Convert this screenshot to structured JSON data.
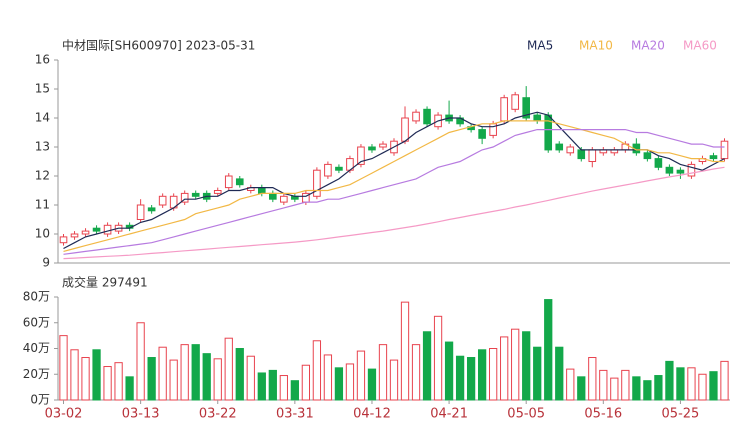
{
  "chart_data": [
    {
      "type": "candlestick",
      "title": "中材国际[SH600970] 2023-05-31",
      "up_color": "#e8434e",
      "down_color": "#13a84a",
      "open": [
        9.7,
        9.9,
        10.0,
        10.2,
        10.0,
        10.1,
        10.3,
        10.5,
        10.9,
        11.0,
        10.9,
        11.1,
        11.4,
        11.4,
        11.4,
        11.6,
        11.9,
        11.5,
        11.6,
        11.4,
        11.1,
        11.3,
        11.1,
        11.3,
        12.0,
        12.3,
        12.2,
        12.4,
        13.0,
        13.0,
        12.8,
        13.2,
        13.9,
        14.3,
        13.7,
        14.1,
        14.0,
        13.7,
        13.6,
        13.4,
        13.9,
        14.3,
        14.7,
        14.1,
        14.1,
        13.1,
        12.8,
        12.9,
        12.5,
        12.8,
        12.8,
        12.9,
        13.1,
        12.8,
        12.6,
        12.3,
        12.2,
        12.0,
        12.5,
        12.7,
        12.6
      ],
      "high": [
        10.0,
        10.1,
        10.2,
        10.3,
        10.4,
        10.4,
        10.4,
        11.2,
        11.0,
        11.4,
        11.4,
        11.5,
        11.5,
        11.5,
        11.6,
        12.1,
        12.0,
        11.7,
        11.7,
        11.5,
        11.4,
        11.4,
        11.5,
        12.3,
        12.5,
        12.4,
        12.7,
        13.1,
        13.1,
        13.2,
        13.3,
        14.4,
        14.3,
        14.4,
        14.2,
        14.6,
        14.1,
        13.8,
        13.7,
        13.9,
        14.8,
        14.9,
        15.1,
        14.2,
        14.2,
        13.2,
        13.1,
        13.0,
        13.0,
        13.0,
        13.0,
        13.2,
        13.3,
        12.9,
        12.7,
        12.4,
        12.3,
        12.5,
        12.7,
        12.8,
        13.3
      ],
      "low": [
        9.6,
        9.8,
        9.9,
        10.0,
        9.9,
        10.0,
        10.1,
        10.4,
        10.7,
        10.9,
        10.8,
        11.0,
        11.2,
        11.1,
        11.3,
        11.5,
        11.6,
        11.4,
        11.3,
        11.1,
        11.0,
        11.1,
        11.0,
        11.2,
        11.9,
        12.1,
        12.1,
        12.3,
        12.8,
        12.9,
        12.7,
        13.1,
        13.8,
        13.7,
        13.6,
        13.8,
        13.7,
        13.5,
        13.1,
        13.3,
        13.8,
        14.2,
        13.9,
        13.8,
        12.8,
        12.8,
        12.7,
        12.5,
        12.3,
        12.7,
        12.7,
        12.8,
        12.7,
        12.5,
        12.2,
        12.0,
        11.9,
        11.9,
        12.4,
        12.5,
        12.5
      ],
      "close": [
        9.9,
        10.0,
        10.1,
        10.1,
        10.3,
        10.3,
        10.2,
        11.0,
        10.8,
        11.3,
        11.3,
        11.4,
        11.3,
        11.2,
        11.5,
        12.0,
        11.7,
        11.6,
        11.4,
        11.2,
        11.3,
        11.2,
        11.4,
        12.2,
        12.4,
        12.2,
        12.6,
        13.0,
        12.9,
        13.1,
        13.2,
        14.0,
        14.2,
        13.8,
        14.1,
        13.9,
        13.8,
        13.6,
        13.3,
        13.8,
        14.7,
        14.8,
        14.0,
        13.9,
        12.9,
        12.9,
        13.0,
        12.6,
        12.9,
        12.9,
        12.9,
        13.1,
        12.8,
        12.6,
        12.3,
        12.1,
        12.1,
        12.4,
        12.6,
        12.6,
        13.2
      ],
      "series": [
        {
          "name": "MA5",
          "color": "#1f2a55",
          "values": [
            9.5,
            9.7,
            9.9,
            10.0,
            10.1,
            10.2,
            10.2,
            10.4,
            10.5,
            10.7,
            10.9,
            11.2,
            11.2,
            11.3,
            11.3,
            11.5,
            11.5,
            11.6,
            11.6,
            11.6,
            11.4,
            11.3,
            11.3,
            11.5,
            11.7,
            11.9,
            12.2,
            12.5,
            12.6,
            12.8,
            13.0,
            13.2,
            13.5,
            13.7,
            13.9,
            14.0,
            14.0,
            13.8,
            13.7,
            13.7,
            13.8,
            14.0,
            14.1,
            14.2,
            14.1,
            13.7,
            13.3,
            12.9,
            12.9,
            12.9,
            12.9,
            12.9,
            12.9,
            12.9,
            12.7,
            12.6,
            12.4,
            12.3,
            12.2,
            12.4,
            12.6
          ]
        },
        {
          "name": "MA10",
          "color": "#f2b845",
          "values": [
            9.4,
            9.5,
            9.6,
            9.7,
            9.8,
            9.9,
            10.0,
            10.1,
            10.2,
            10.3,
            10.4,
            10.5,
            10.7,
            10.8,
            10.9,
            11.0,
            11.2,
            11.3,
            11.4,
            11.4,
            11.4,
            11.4,
            11.5,
            11.5,
            11.5,
            11.6,
            11.7,
            11.9,
            12.1,
            12.3,
            12.5,
            12.7,
            12.9,
            13.1,
            13.3,
            13.5,
            13.6,
            13.7,
            13.8,
            13.8,
            13.9,
            13.9,
            13.9,
            13.9,
            13.9,
            13.8,
            13.7,
            13.6,
            13.5,
            13.4,
            13.3,
            13.1,
            12.9,
            12.9,
            12.8,
            12.8,
            12.7,
            12.6,
            12.6,
            12.5,
            12.5
          ]
        },
        {
          "name": "MA20",
          "color": "#b77be0",
          "values": [
            9.3,
            9.35,
            9.4,
            9.45,
            9.5,
            9.55,
            9.6,
            9.65,
            9.7,
            9.8,
            9.9,
            10.0,
            10.1,
            10.2,
            10.3,
            10.4,
            10.5,
            10.6,
            10.7,
            10.8,
            10.9,
            11.0,
            11.1,
            11.1,
            11.2,
            11.2,
            11.3,
            11.4,
            11.5,
            11.6,
            11.7,
            11.8,
            11.9,
            12.1,
            12.3,
            12.4,
            12.5,
            12.7,
            12.9,
            13.0,
            13.2,
            13.4,
            13.5,
            13.6,
            13.6,
            13.6,
            13.6,
            13.6,
            13.6,
            13.6,
            13.6,
            13.6,
            13.5,
            13.5,
            13.4,
            13.3,
            13.2,
            13.1,
            13.1,
            13.0,
            13.0
          ]
        },
        {
          "name": "MA60",
          "color": "#f59ac6",
          "values": [
            9.15,
            9.17,
            9.19,
            9.21,
            9.23,
            9.25,
            9.27,
            9.3,
            9.33,
            9.36,
            9.39,
            9.42,
            9.45,
            9.48,
            9.51,
            9.54,
            9.57,
            9.6,
            9.63,
            9.66,
            9.69,
            9.72,
            9.76,
            9.8,
            9.85,
            9.9,
            9.95,
            10.0,
            10.05,
            10.1,
            10.16,
            10.22,
            10.28,
            10.35,
            10.42,
            10.5,
            10.57,
            10.64,
            10.71,
            10.78,
            10.85,
            10.93,
            11.0,
            11.08,
            11.16,
            11.24,
            11.32,
            11.4,
            11.48,
            11.55,
            11.62,
            11.69,
            11.76,
            11.83,
            11.9,
            11.97,
            12.03,
            12.1,
            12.17,
            12.24,
            12.3
          ]
        }
      ],
      "ylim": [
        9,
        16
      ],
      "yticks": [
        9,
        10,
        11,
        12,
        13,
        14,
        15,
        16
      ]
    },
    {
      "type": "bar",
      "title": "成交量 297491",
      "categories": [
        "03-02",
        null,
        null,
        null,
        null,
        null,
        null,
        "03-13",
        null,
        null,
        null,
        null,
        null,
        null,
        "03-22",
        null,
        null,
        null,
        null,
        null,
        null,
        "03-31",
        null,
        null,
        null,
        null,
        null,
        null,
        "04-12",
        null,
        null,
        null,
        null,
        null,
        null,
        "04-21",
        null,
        null,
        null,
        null,
        null,
        null,
        "05-05",
        null,
        null,
        null,
        null,
        null,
        null,
        "05-16",
        null,
        null,
        null,
        null,
        null,
        null,
        "05-25",
        null,
        null,
        null,
        null
      ],
      "values": [
        50,
        39,
        33,
        39,
        26,
        29,
        18,
        60,
        33,
        41,
        31,
        43,
        43,
        36,
        32,
        48,
        40,
        34,
        21,
        23,
        19,
        15,
        27,
        46,
        35,
        25,
        28,
        38,
        24,
        43,
        31,
        76,
        43,
        53,
        65,
        45,
        34,
        33,
        39,
        40,
        49,
        55,
        53,
        41,
        78,
        41,
        24,
        18,
        33,
        23,
        17,
        23,
        18,
        15,
        19,
        30,
        25,
        25,
        20,
        22,
        30
      ],
      "ylim": [
        0,
        80
      ],
      "yticks": [
        {
          "value": 0,
          "label": "0万"
        },
        {
          "value": 20,
          "label": "20万"
        },
        {
          "value": 40,
          "label": "40万"
        },
        {
          "value": 60,
          "label": "60万"
        },
        {
          "value": 80,
          "label": "80万"
        }
      ]
    }
  ]
}
